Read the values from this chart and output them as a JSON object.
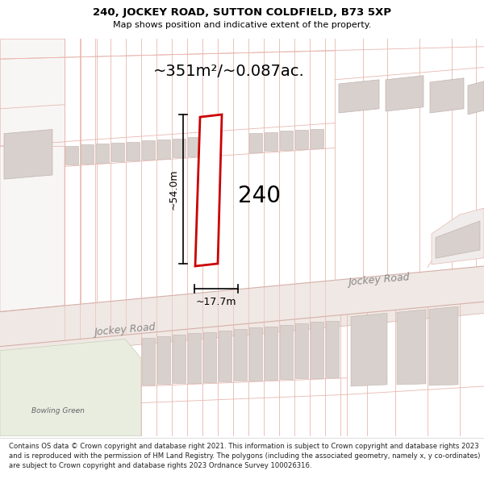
{
  "title_line1": "240, JOCKEY ROAD, SUTTON COLDFIELD, B73 5XP",
  "title_line2": "Map shows position and indicative extent of the property.",
  "area_text": "~351m²/~0.087ac.",
  "dim_height": "~54.0m",
  "dim_width": "~17.7m",
  "property_number": "240",
  "road_label_left": "Jockey Road",
  "road_label_right": "Jockey Road",
  "bowling_green_label": "Bowling Green",
  "footer_text": "Contains OS data © Crown copyright and database right 2021. This information is subject to Crown copyright and database rights 2023 and is reproduced with the permission of HM Land Registry. The polygons (including the associated geometry, namely x, y co-ordinates) are subject to Crown copyright and database rights 2023 Ordnance Survey 100026316.",
  "bg_color": "#ffffff",
  "map_bg": "#ffffff",
  "cadastral_line": "#e8b8b0",
  "building_fill": "#d8d0cc",
  "building_outline": "#c0b4b0",
  "road_fill": "#f0e8e4",
  "road_line": "#d4b0a8",
  "property_outline": "#cc0000",
  "property_fill": "#ffffff",
  "dim_color": "#000000",
  "text_color": "#000000",
  "green_fill": "#e8ede0",
  "green_outline": "#c8d0b8",
  "road_text_color": "#888888",
  "header_sep_color": "#e0e0e0"
}
